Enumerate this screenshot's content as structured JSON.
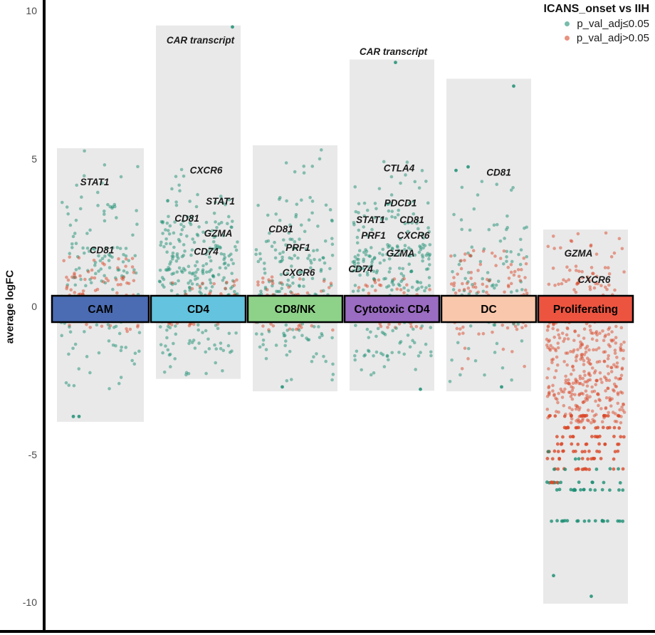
{
  "figure": {
    "y_axis_title": "average logFC",
    "legend": {
      "title": "ICANS_onset vs IIH",
      "items": [
        {
          "key": "sig",
          "label": "p_val_adj≤0.05"
        },
        {
          "key": "nonsig",
          "label": "p_val_adj>0.05"
        }
      ]
    }
  },
  "chart_data": {
    "type": "scatter",
    "title": "ICANS_onset vs IIH",
    "ylabel": "average logFC",
    "ylim": [
      -10.6,
      10.4
    ],
    "grid": false,
    "legend_position": "top-right",
    "jitter_seed": 7,
    "y_ticks": [
      {
        "value": 10,
        "label": "10"
      },
      {
        "value": 5,
        "label": "5"
      },
      {
        "value": 0,
        "label": "0"
      },
      {
        "value": -5,
        "label": "-5"
      },
      {
        "value": -10,
        "label": "-10"
      }
    ],
    "point_classes": {
      "sig": {
        "label": "p_val_adj≤0.05",
        "color": "#1d8f74",
        "opacity": 0.5
      },
      "nonsig": {
        "label": "p_val_adj>0.05",
        "color": "#d94a2b",
        "opacity": 0.5
      }
    },
    "colors": {
      "band_bg": "#e9e9e9",
      "header_border": "#000000",
      "label_text": "#1a1a1a"
    },
    "columns": [
      {
        "name": "CAM",
        "header_color": "#4b6cb3",
        "band_y": [
          5.35,
          -3.9
        ],
        "clusters": [
          {
            "class": "sig",
            "n": 10,
            "y": [
              3.4,
              5.3
            ]
          },
          {
            "class": "sig",
            "n": 28,
            "y": [
              1.9,
              3.5
            ]
          },
          {
            "class": "sig",
            "n": 60,
            "y": [
              0.3,
              2.0
            ]
          },
          {
            "class": "nonsig",
            "n": 85,
            "y": [
              -0.85,
              1.7
            ]
          },
          {
            "class": "sig",
            "n": 38,
            "y": [
              -1.9,
              0.0
            ]
          },
          {
            "class": "sig",
            "n": 9,
            "y": [
              -3.1,
              -1.8
            ]
          }
        ],
        "rows": [],
        "singles": [
          {
            "class": "sig",
            "y": -3.72,
            "dx": -38
          },
          {
            "class": "sig",
            "y": -3.72,
            "dx": -30
          }
        ],
        "gene_labels": [
          {
            "text": "STAT1",
            "dx": -8,
            "y": 4.2
          },
          {
            "text": "CD81",
            "dx": 2,
            "y": 1.9
          }
        ]
      },
      {
        "name": "CD4",
        "header_color": "#64c3de",
        "band_y": [
          9.5,
          -2.45
        ],
        "clusters": [
          {
            "class": "sig",
            "n": 5,
            "y": [
              3.9,
              4.8
            ]
          },
          {
            "class": "sig",
            "n": 22,
            "y": [
              2.8,
              4.0
            ]
          },
          {
            "class": "sig",
            "n": 45,
            "y": [
              2.0,
              2.9
            ]
          },
          {
            "class": "sig",
            "n": 130,
            "y": [
              0.3,
              2.1
            ]
          },
          {
            "class": "nonsig",
            "n": 55,
            "y": [
              -0.7,
              0.9
            ]
          },
          {
            "class": "sig",
            "n": 55,
            "y": [
              -1.6,
              0.1
            ]
          },
          {
            "class": "sig",
            "n": 12,
            "y": [
              -2.4,
              -1.5
            ]
          }
        ],
        "rows": [],
        "singles": [
          {
            "class": "sig",
            "y": 9.45,
            "dx": 48
          }
        ],
        "gene_labels": [
          {
            "text": "CAR transcript",
            "dx": 3,
            "y": 9.0
          },
          {
            "text": "CXCR6",
            "dx": 11,
            "y": 4.6
          },
          {
            "text": "STAT1",
            "dx": 31,
            "y": 3.56
          },
          {
            "text": "CD81",
            "dx": -16,
            "y": 2.98
          },
          {
            "text": "GZMA",
            "dx": 28,
            "y": 2.47
          },
          {
            "text": "CD74",
            "dx": 11,
            "y": 1.86
          }
        ]
      },
      {
        "name": "CD8/NK",
        "header_color": "#8ed289",
        "band_y": [
          5.45,
          -2.87
        ],
        "clusters": [
          {
            "class": "sig",
            "n": 8,
            "y": [
              3.6,
              5.3
            ]
          },
          {
            "class": "sig",
            "n": 26,
            "y": [
              2.2,
              3.7
            ]
          },
          {
            "class": "sig",
            "n": 95,
            "y": [
              0.3,
              2.3
            ]
          },
          {
            "class": "nonsig",
            "n": 60,
            "y": [
              -0.8,
              1.0
            ]
          },
          {
            "class": "sig",
            "n": 48,
            "y": [
              -1.7,
              0.0
            ]
          },
          {
            "class": "sig",
            "n": 9,
            "y": [
              -2.6,
              -1.7
            ]
          }
        ],
        "rows": [],
        "singles": [
          {
            "class": "sig",
            "y": -2.72,
            "dx": -18
          }
        ],
        "gene_labels": [
          {
            "text": "CD81",
            "dx": -20,
            "y": 2.61
          },
          {
            "text": "PRF1",
            "dx": 4,
            "y": 1.99
          },
          {
            "text": "CXCR6",
            "dx": 5,
            "y": 1.14
          }
        ]
      },
      {
        "name": "Cytotoxic CD4",
        "header_color": "#9a6cc2",
        "band_y": [
          8.35,
          -2.85
        ],
        "clusters": [
          {
            "class": "sig",
            "n": 5,
            "y": [
              4.3,
              5.0
            ]
          },
          {
            "class": "sig",
            "n": 12,
            "y": [
              3.4,
              4.4
            ]
          },
          {
            "class": "sig",
            "n": 45,
            "y": [
              2.0,
              3.5
            ]
          },
          {
            "class": "sig",
            "n": 130,
            "y": [
              0.2,
              2.1
            ]
          },
          {
            "class": "nonsig",
            "n": 50,
            "y": [
              -0.8,
              1.0
            ]
          },
          {
            "class": "sig",
            "n": 55,
            "y": [
              -1.7,
              0.0
            ]
          },
          {
            "class": "sig",
            "n": 9,
            "y": [
              -2.6,
              -1.6
            ]
          }
        ],
        "rows": [],
        "singles": [
          {
            "class": "sig",
            "y": 8.25,
            "dx": 5
          },
          {
            "class": "sig",
            "y": -2.8,
            "dx": 40
          }
        ],
        "gene_labels": [
          {
            "text": "CAR transcript",
            "dx": 2,
            "y": 8.62
          },
          {
            "text": "CTLA4",
            "dx": 10,
            "y": 4.67
          },
          {
            "text": "PDCD1",
            "dx": 12,
            "y": 3.49
          },
          {
            "text": "STAT1",
            "dx": -30,
            "y": 2.93
          },
          {
            "text": "CD81",
            "dx": 28,
            "y": 2.93
          },
          {
            "text": "PRF1",
            "dx": -26,
            "y": 2.4
          },
          {
            "text": "CXCR6",
            "dx": 30,
            "y": 2.4
          },
          {
            "text": "GZMA",
            "dx": 12,
            "y": 1.79
          },
          {
            "text": "CD74",
            "dx": -44,
            "y": 1.26
          }
        ]
      },
      {
        "name": "DC",
        "header_color": "#f9c7ab",
        "band_y": [
          7.7,
          -2.87
        ],
        "clusters": [
          {
            "class": "sig",
            "n": 10,
            "y": [
              2.7,
              4.3
            ]
          },
          {
            "class": "sig",
            "n": 35,
            "y": [
              0.9,
              2.8
            ]
          },
          {
            "class": "sig",
            "n": 30,
            "y": [
              0.0,
              1.0
            ]
          },
          {
            "class": "nonsig",
            "n": 110,
            "y": [
              -1.0,
              1.9
            ]
          },
          {
            "class": "sig",
            "n": 22,
            "y": [
              -1.9,
              -0.1
            ]
          },
          {
            "class": "nonsig",
            "n": 6,
            "y": [
              -2.3,
              -1.3
            ]
          },
          {
            "class": "sig",
            "n": 5,
            "y": [
              -2.8,
              -1.9
            ]
          }
        ],
        "rows": [],
        "singles": [
          {
            "class": "sig",
            "y": 7.45,
            "dx": 35
          },
          {
            "class": "sig",
            "y": 4.72,
            "dx": -29
          },
          {
            "class": "sig",
            "y": 4.6,
            "dx": -46
          },
          {
            "class": "sig",
            "y": -2.72,
            "dx": 18
          }
        ],
        "gene_labels": [
          {
            "text": "CD81",
            "dx": 14,
            "y": 4.53
          }
        ]
      },
      {
        "name": "Proliferating",
        "header_color": "#ed5440",
        "band_y": [
          2.6,
          -10.05
        ],
        "clusters": [
          {
            "class": "nonsig",
            "n": 15,
            "y": [
              1.3,
              2.5
            ]
          },
          {
            "class": "nonsig",
            "n": 55,
            "y": [
              0.2,
              1.4
            ]
          },
          {
            "class": "nonsig",
            "n": 150,
            "y": [
              -1.5,
              0.3
            ]
          },
          {
            "class": "nonsig",
            "n": 150,
            "y": [
              -3.0,
              -1.4
            ]
          },
          {
            "class": "nonsig",
            "n": 90,
            "y": [
              -3.95,
              -2.9
            ]
          }
        ],
        "rows": [
          {
            "class": "nonsig",
            "y": -3.7,
            "n": 20
          },
          {
            "class": "nonsig",
            "y": -4.1,
            "n": 16
          },
          {
            "class": "nonsig",
            "y": -4.4,
            "n": 13
          },
          {
            "class": "nonsig",
            "y": -4.65,
            "n": 12
          },
          {
            "class": "nonsig",
            "y": -4.9,
            "n": 15
          },
          {
            "class": "sig",
            "y": -4.9,
            "n": 1
          },
          {
            "class": "nonsig",
            "y": -5.15,
            "n": 12
          },
          {
            "class": "sig",
            "y": -5.15,
            "n": 2
          },
          {
            "class": "nonsig",
            "y": -5.5,
            "n": 13
          },
          {
            "class": "sig",
            "y": -5.5,
            "n": 5
          },
          {
            "class": "sig",
            "y": -5.95,
            "n": 13
          },
          {
            "class": "nonsig",
            "y": -5.95,
            "n": 4
          },
          {
            "class": "sig",
            "y": -6.2,
            "n": 16
          },
          {
            "class": "sig",
            "y": -7.25,
            "n": 18
          }
        ],
        "singles": [
          {
            "class": "sig",
            "y": -9.1,
            "dx": -45
          },
          {
            "class": "sig",
            "y": -9.8,
            "dx": 8
          }
        ],
        "gene_labels": [
          {
            "text": "GZMA",
            "dx": -10,
            "y": 1.79
          },
          {
            "text": "CXCR6",
            "dx": 12,
            "y": 0.9
          }
        ]
      }
    ]
  }
}
